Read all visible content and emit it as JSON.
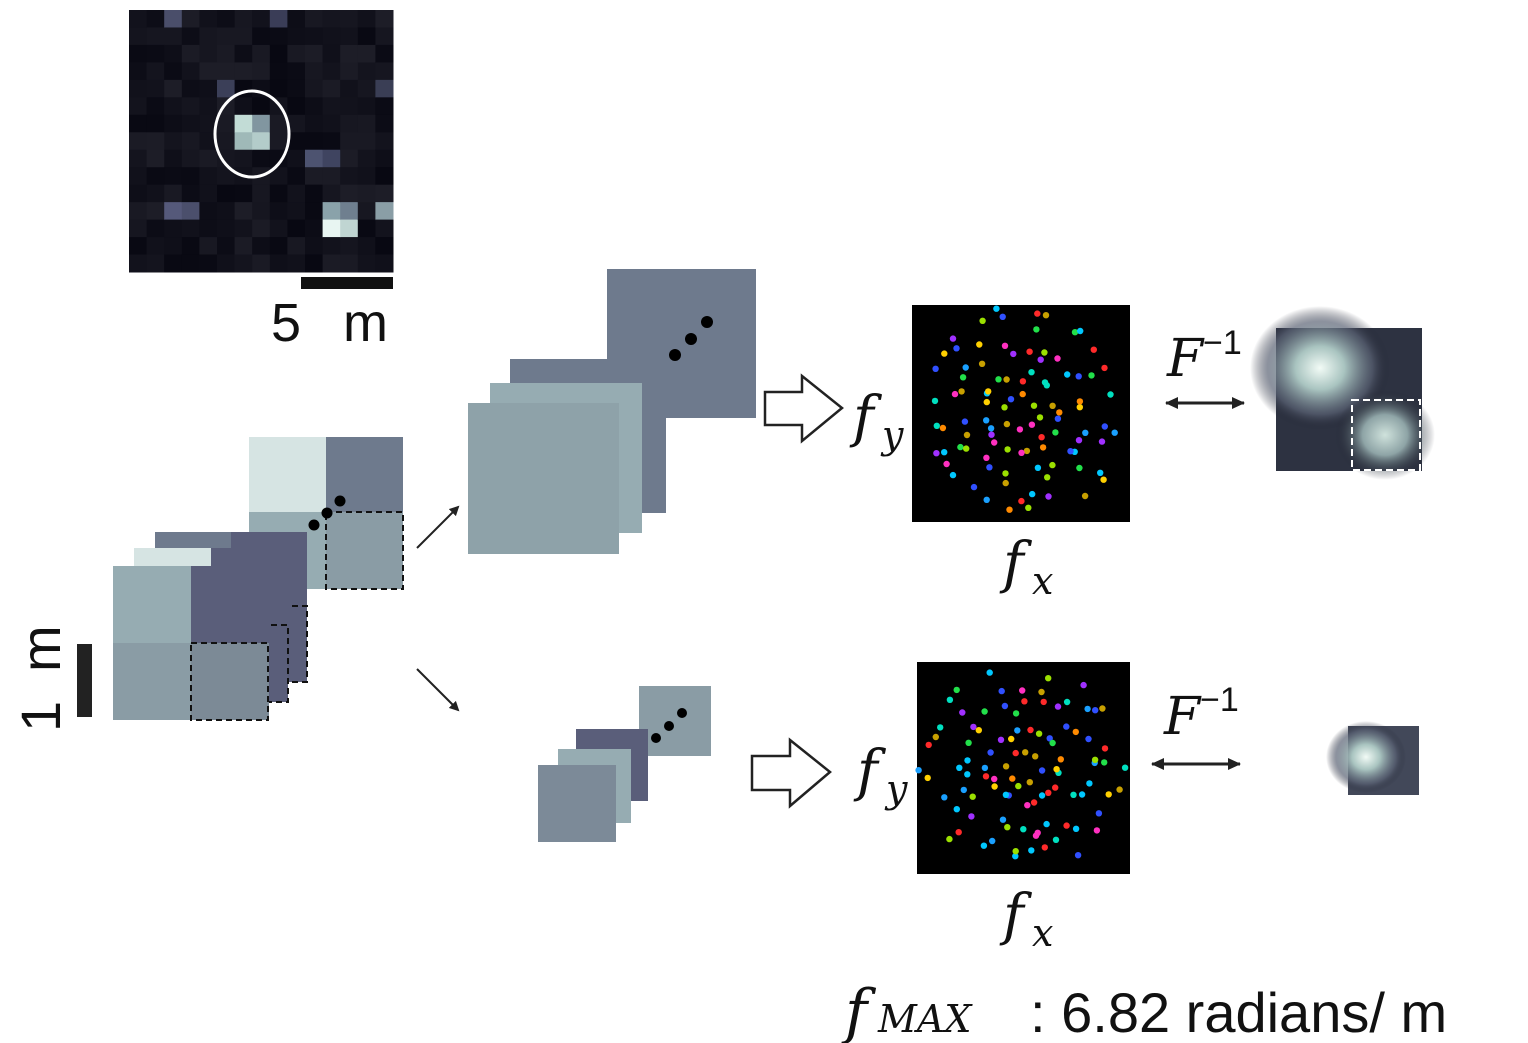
{
  "scale_bar_top": {
    "number": "5",
    "unit": "m"
  },
  "scale_bar_left": {
    "number": "1",
    "unit": "m"
  },
  "ellipsis": "…",
  "spectrum_labels": {
    "top": {
      "y_axis": "f",
      "y_sub": "y",
      "x_axis": "f",
      "x_sub": "x"
    },
    "bottom": {
      "y_axis": "f",
      "y_sub": "y",
      "x_axis": "f",
      "x_sub": "x"
    }
  },
  "inverse_transform": {
    "top": {
      "symbol": "F",
      "power": "−1"
    },
    "bottom": {
      "symbol": "F",
      "power": "−1"
    }
  },
  "fmax": {
    "symbol": "f",
    "subscript": "MAX",
    "text": ": 6.82 radians/  m"
  },
  "colors": {
    "tile_light": "#d6e4e3",
    "tile_mid": "#96acb2",
    "tile_slate": "#6e7a8d",
    "tile_dark": "#5a5e7a",
    "spectrum_bg": "#000000",
    "arrow": "#222222"
  },
  "icons": [
    "circle-marker-icon",
    "hollow-arrow-icon",
    "double-arrow-icon",
    "thin-arrow-icon"
  ]
}
